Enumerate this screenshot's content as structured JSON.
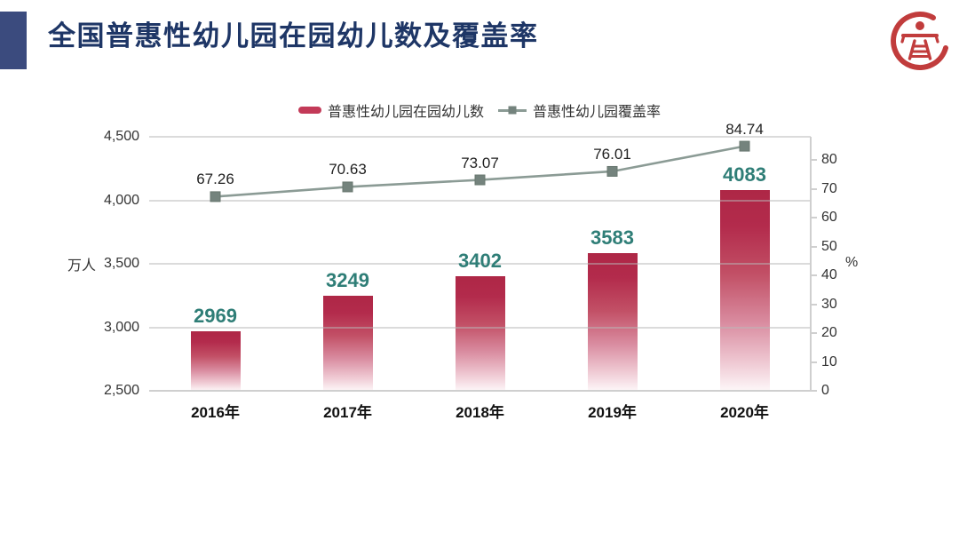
{
  "header": {
    "title": "全国普惠性幼儿园在园幼儿数及覆盖率",
    "logo_icon": "education-emblem",
    "accent_color": "#3b4b7e",
    "title_color": "#1e3666",
    "logo_color": "#c13c3c"
  },
  "chart_data": {
    "type": "combo",
    "title": "全国普惠性幼儿园在园幼儿数及覆盖率",
    "categories": [
      "2016年",
      "2017年",
      "2018年",
      "2019年",
      "2020年"
    ],
    "series": [
      {
        "name": "普惠性幼儿园在园幼儿数",
        "type": "bar",
        "axis": "left",
        "unit": "万人",
        "values": [
          2969,
          3249,
          3402,
          3583,
          4083
        ],
        "color": "#ae2746",
        "label_color": "#2f7e77"
      },
      {
        "name": "普惠性幼儿园覆盖率",
        "type": "line",
        "axis": "right",
        "unit": "%",
        "values": [
          67.26,
          70.63,
          73.07,
          76.01,
          84.74
        ],
        "color": "#8b9b95",
        "marker": "square",
        "marker_color": "#74837d",
        "label_color": "#222222"
      }
    ],
    "left_axis": {
      "unit": "万人",
      "min": 2500,
      "max": 4500,
      "step": 500,
      "tick_labels": [
        "2,500",
        "3,000",
        "3,500",
        "4,000",
        "4,500"
      ]
    },
    "right_axis": {
      "unit": "%",
      "min": 0,
      "max": 80,
      "step": 10,
      "tick_labels": [
        "0",
        "10",
        "20",
        "30",
        "40",
        "50",
        "60",
        "70",
        "80"
      ],
      "plot_max": 88
    },
    "legend_position": "top",
    "grid": true
  }
}
